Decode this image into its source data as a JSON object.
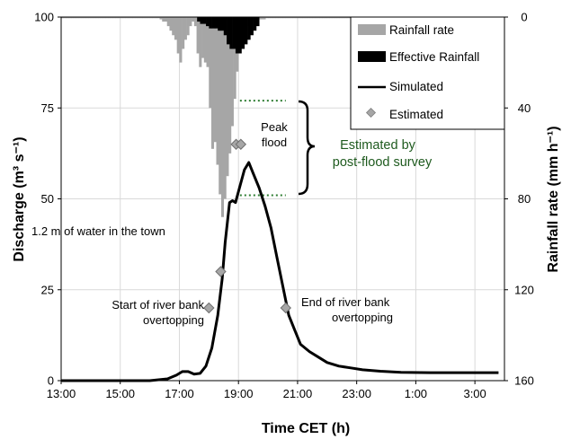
{
  "chart_data": {
    "type": "line",
    "xlabel": "Time CET (h)",
    "ylabel_left": "Discharge (m³ s⁻¹)",
    "ylabel_right": "Rainfall rate (mm h⁻¹)",
    "x_tick_labels": [
      "13:00",
      "15:00",
      "17:00",
      "19:00",
      "21:00",
      "23:00",
      "1:00",
      "3:00"
    ],
    "x_ticks": [
      13,
      15,
      17,
      19,
      21,
      23,
      25,
      27
    ],
    "xlim": [
      13,
      28
    ],
    "ylim_left": [
      0,
      100
    ],
    "y_ticks_left": [
      0,
      25,
      50,
      75,
      100
    ],
    "ylim_right_reversed": [
      0,
      160
    ],
    "y_ticks_right": [
      0,
      40,
      80,
      120,
      160
    ],
    "grid": true,
    "legend_position": "top-right",
    "legend": {
      "rainfall": "Rainfall rate",
      "effective": "Effective Rainfall",
      "simulated": "Simulated",
      "estimated": "Estimated"
    },
    "colors": {
      "rainfall": "#a6a6a6",
      "effective": "#000000",
      "simulated": "#000000",
      "estimated": "#a6a6a6",
      "survey_text": "#1e5a1e",
      "survey_line": "#2e7d32",
      "grid": "#d9d9d9"
    },
    "rainfall_series": {
      "name": "Rainfall rate",
      "x_start": 13.0,
      "bin_width_h": 0.0833,
      "values": [
        0.5,
        0.5,
        0.5,
        0.5,
        0.5,
        0.5,
        0.5,
        0.5,
        0.5,
        0.5,
        0.5,
        0.5,
        0.5,
        0.5,
        0.5,
        0.5,
        0.5,
        0.5,
        0.5,
        0.5,
        0.5,
        0.5,
        0.5,
        0.5,
        0.5,
        0.5,
        0.5,
        0.5,
        0.5,
        0.5,
        0.5,
        0.5,
        0.5,
        0.5,
        0.5,
        0.5,
        0.5,
        0.5,
        0.5,
        0.5,
        1,
        2,
        2,
        4,
        6,
        8,
        10,
        16,
        20,
        14,
        10,
        8,
        4,
        2,
        4,
        16,
        22,
        18,
        20,
        22,
        40,
        58,
        55,
        65,
        78,
        88,
        80,
        70,
        60,
        48,
        36,
        24,
        12,
        8,
        6,
        4,
        3,
        2,
        1.5,
        1,
        1,
        1,
        1,
        0.5,
        0.5,
        0.5,
        0.5,
        0.5,
        0.5,
        0.5,
        0.5,
        0.5,
        0.5,
        0.5,
        0.5,
        0.5,
        0.5,
        0.5,
        0.5,
        0.5,
        0.5,
        0.5,
        0.5,
        0.5,
        0.5,
        0.5,
        0.5,
        0.5,
        0.5,
        0.5,
        0.5,
        0.5,
        0.5,
        0.5,
        0.5,
        0.5,
        0.5,
        0.5,
        0.5,
        0.5,
        0.5,
        0.5,
        0.5,
        0.5,
        0.5,
        0.5,
        0.5,
        0.5,
        0.5,
        0.5,
        0.5,
        0.5,
        0.5,
        0.5,
        0.5,
        0.5,
        0.5,
        0.5,
        0.5,
        0.5,
        0.5,
        0.5,
        0.5,
        0.5,
        0.5,
        0.5,
        0.5,
        0.5,
        0.5,
        0.5,
        0.5,
        0.5,
        0.5,
        0.5,
        0.5,
        0.5,
        0.5,
        0.5,
        0.5,
        0.5,
        0.5,
        0.5,
        0.5,
        0.5,
        0.5,
        0.5,
        0.5,
        0.5,
        0.5,
        0.5,
        0.5,
        0.5,
        0.5,
        0.5,
        0.5,
        0.5,
        0.5,
        0.5,
        0.5,
        0.5,
        0.5,
        0.5,
        0.5,
        0.5,
        0.5,
        0.5,
        0.5,
        0.5,
        0.5,
        0.5,
        0.5,
        0.5,
        0.5,
        0.5,
        0.5,
        0.5,
        0.5,
        0.5,
        0.5,
        0.5,
        0.5,
        0.5,
        0.5,
        0.5,
        0.5,
        0.5,
        0.5,
        0.5,
        0.5,
        0.5,
        0.5,
        0.5,
        0.5,
        0.5,
        0.5,
        0.5,
        0.5,
        0.5,
        0.5,
        0.5,
        0.5,
        0.5,
        0.5,
        0.5
      ]
    },
    "effective_series": {
      "name": "Effective Rainfall",
      "x": [
        17.6,
        17.7,
        17.8,
        17.9,
        18.0,
        18.1,
        18.2,
        18.3,
        18.4,
        18.5,
        18.6,
        18.7,
        18.8,
        18.9,
        19.0,
        19.1,
        19.2,
        19.3,
        19.4,
        19.5,
        19.6
      ],
      "values": [
        2,
        3,
        3,
        4,
        5,
        5,
        5,
        6,
        6,
        8,
        12,
        14,
        14,
        16,
        16,
        14,
        12,
        10,
        8,
        6,
        4
      ]
    },
    "simulated_series": {
      "name": "Simulated",
      "x": [
        13.0,
        16.0,
        16.6,
        16.9,
        17.1,
        17.3,
        17.5,
        17.7,
        17.9,
        18.1,
        18.3,
        18.45,
        18.55,
        18.7,
        18.8,
        18.9,
        19.0,
        19.2,
        19.35,
        19.5,
        19.7,
        19.9,
        20.1,
        20.3,
        20.5,
        20.7,
        20.9,
        21.1,
        21.4,
        21.7,
        22.0,
        22.4,
        22.8,
        23.2,
        23.8,
        24.5,
        25.5,
        26.5,
        27.8
      ],
      "values": [
        0,
        0,
        0.5,
        1.5,
        2.5,
        2.5,
        1.8,
        2.0,
        4.0,
        9.0,
        18.0,
        28.0,
        38.0,
        49.0,
        49.5,
        49.0,
        52.0,
        58.0,
        60.0,
        57.0,
        53.0,
        48.0,
        42.0,
        34.0,
        26.0,
        18.0,
        14.0,
        10.0,
        8.0,
        6.5,
        5.0,
        4.0,
        3.5,
        3.0,
        2.6,
        2.3,
        2.2,
        2.2,
        2.2
      ]
    },
    "estimated_series": {
      "name": "Estimated",
      "x": [
        18.0,
        18.4,
        18.92,
        19.08,
        20.6
      ],
      "values": [
        20,
        30,
        65,
        65,
        20
      ]
    },
    "annotations": {
      "peak_line1": "Peak",
      "peak_line2": "flood",
      "survey_line1": "Estimated by",
      "survey_line2": "post-flood survey",
      "water_town": "1.2 m of water in the town",
      "start_line1": "Start of river bank",
      "start_line2": "overtopping",
      "end_line1": "End of river bank",
      "end_line2": "overtopping"
    },
    "survey_band": {
      "upper_discharge": 77,
      "lower_discharge": 51,
      "x_start": 19.05,
      "x_end": 20.6
    }
  }
}
